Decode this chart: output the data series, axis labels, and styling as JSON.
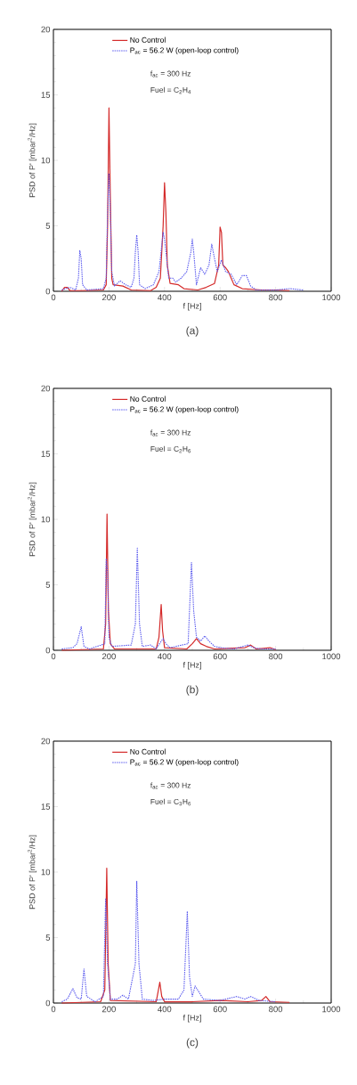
{
  "chart_data": [
    {
      "type": "line",
      "xlabel": "f [Hz]",
      "ylabel": "PSD of P' [mbar$^{2}$/Hz]",
      "xlim": [
        0,
        1000
      ],
      "ylim": [
        0,
        20
      ],
      "xticks": [
        0,
        200,
        400,
        600,
        800,
        1000
      ],
      "yticks": [
        0,
        5,
        10,
        15,
        20
      ],
      "legend": "top left",
      "annotations": [
        "f$_{ac}$ = 300 Hz",
        "Fuel = C$_{2}$H$_{4}$",
        "(a)"
      ],
      "series": [
        {
          "name": "No Control",
          "color": "#d42a2a",
          "line_style": "solid",
          "x": [
            30,
            40,
            50,
            60,
            100,
            180,
            190,
            195,
            200,
            205,
            210,
            215,
            250,
            280,
            350,
            370,
            385,
            395,
            400,
            405,
            410,
            420,
            450,
            470,
            520,
            550,
            580,
            595,
            600,
            605,
            610,
            620,
            630,
            640,
            650,
            680,
            750,
            800,
            850
          ],
          "values": [
            0,
            0.3,
            0.3,
            0.05,
            0.05,
            0.1,
            0.5,
            5,
            14,
            7,
            1,
            0.5,
            0.4,
            0.1,
            0.05,
            0.3,
            1,
            5,
            8.3,
            6,
            2,
            0.6,
            0.5,
            0.2,
            0.1,
            0.3,
            0.6,
            2,
            4.9,
            4.5,
            2,
            1.8,
            1.5,
            1,
            0.5,
            0.2,
            0.1,
            0.1,
            0.05
          ]
        },
        {
          "name": "P$_{ac}$ = 56.2 W (open-loop control)",
          "color": "#5a5aee",
          "line_style": "dotted",
          "x": [
            30,
            60,
            80,
            90,
            95,
            100,
            105,
            120,
            180,
            190,
            195,
            200,
            205,
            210,
            220,
            240,
            260,
            280,
            290,
            295,
            300,
            305,
            310,
            330,
            360,
            380,
            395,
            400,
            405,
            415,
            430,
            440,
            460,
            480,
            495,
            500,
            505,
            515,
            530,
            545,
            560,
            570,
            580,
            590,
            605,
            620,
            640,
            660,
            680,
            695,
            710,
            730,
            800,
            850,
            900
          ],
          "values": [
            0.1,
            0.3,
            0.1,
            1,
            3.1,
            2.5,
            0.5,
            0.1,
            0.2,
            1,
            6,
            9,
            6,
            1.5,
            0.4,
            0.8,
            0.5,
            0.3,
            1,
            3,
            4.3,
            3,
            0.5,
            0.2,
            0.5,
            1.5,
            4.5,
            4,
            3,
            1,
            1,
            0.7,
            1,
            1.5,
            3,
            4,
            3,
            0.5,
            1.8,
            1.3,
            2,
            3.6,
            2.5,
            1.5,
            2.4,
            1.5,
            1.3,
            0.5,
            1.2,
            1.2,
            0.4,
            0.1,
            0.1,
            0.2,
            0.1
          ]
        }
      ]
    },
    {
      "type": "line",
      "xlabel": "f [Hz]",
      "ylabel": "PSD of P' [mbar$^{2}$/Hz]",
      "xlim": [
        0,
        1000
      ],
      "ylim": [
        0,
        20
      ],
      "xticks": [
        0,
        200,
        400,
        600,
        800,
        1000
      ],
      "yticks": [
        0,
        5,
        10,
        15,
        20
      ],
      "legend": "top left",
      "annotations": [
        "f$_{ac}$ = 300 Hz",
        "Fuel = C$_{2}$H$_{6}$",
        "(b)"
      ],
      "series": [
        {
          "name": "No Control",
          "color": "#d42a2a",
          "line_style": "solid",
          "x": [
            30,
            180,
            188,
            193,
            198,
            205,
            220,
            370,
            380,
            388,
            393,
            400,
            480,
            500,
            515,
            530,
            550,
            580,
            690,
            710,
            730,
            780,
            800
          ],
          "values": [
            0,
            0.1,
            2,
            10.4,
            3,
            0.5,
            0.1,
            0.1,
            1,
            3.5,
            1.5,
            0.2,
            0.1,
            0.5,
            0.9,
            0.5,
            0.3,
            0.1,
            0.2,
            0.4,
            0.1,
            0.2,
            0.05
          ]
        },
        {
          "name": "P$_{ac}$ = 56.2 W (open-loop control)",
          "color": "#5a5aee",
          "line_style": "dotted",
          "x": [
            30,
            70,
            85,
            100,
            110,
            130,
            185,
            190,
            195,
            200,
            210,
            280,
            295,
            302,
            310,
            320,
            350,
            370,
            385,
            395,
            405,
            420,
            485,
            497,
            505,
            515,
            530,
            545,
            560,
            580,
            600,
            650,
            700,
            720,
            750,
            800
          ],
          "values": [
            0.1,
            0.2,
            0.5,
            1.8,
            0.3,
            0.1,
            0.5,
            7,
            6,
            1,
            0.3,
            0.4,
            2,
            7.8,
            2,
            0.3,
            0.4,
            0.1,
            0.6,
            0.9,
            0.5,
            0.2,
            0.5,
            6.7,
            3,
            1,
            0.7,
            1.1,
            0.7,
            0.3,
            0.2,
            0.1,
            0.4,
            0.2,
            0.1,
            0.1
          ]
        }
      ]
    },
    {
      "type": "line",
      "xlabel": "f [Hz]",
      "ylabel": "PSD of P' [mbar$^{2}$/Hz]",
      "xlim": [
        0,
        1000
      ],
      "ylim": [
        0,
        20
      ],
      "xticks": [
        0,
        200,
        400,
        600,
        800,
        1000
      ],
      "yticks": [
        0,
        5,
        10,
        15,
        20
      ],
      "legend": "top left",
      "annotations": [
        "f$_{ac}$ = 300 Hz",
        "Fuel = C$_{3}$H$_{6}$",
        "(c)"
      ],
      "series": [
        {
          "name": "No Control",
          "color": "#d42a2a",
          "line_style": "solid",
          "x": [
            30,
            170,
            185,
            192,
            197,
            205,
            370,
            378,
            383,
            390,
            400,
            500,
            600,
            700,
            750,
            765,
            780,
            850
          ],
          "values": [
            0,
            0.1,
            1,
            10.3,
            3,
            0.2,
            0.1,
            1,
            1.6,
            0.5,
            0.1,
            0.1,
            0.2,
            0.1,
            0.2,
            0.5,
            0.1,
            0.05
          ]
        },
        {
          "name": "P$_{ac}$ = 56.2 W (open-loop control)",
          "color": "#5a5aee",
          "line_style": "dotted",
          "x": [
            30,
            50,
            70,
            85,
            100,
            110,
            120,
            150,
            180,
            188,
            195,
            205,
            230,
            250,
            270,
            295,
            300,
            308,
            320,
            360,
            400,
            450,
            470,
            482,
            490,
            500,
            510,
            525,
            540,
            600,
            660,
            690,
            710,
            740,
            800
          ],
          "values": [
            0.1,
            0.3,
            1.1,
            0.4,
            0.3,
            2.6,
            0.5,
            0.1,
            0.5,
            8,
            3,
            0.3,
            0.3,
            0.6,
            0.3,
            3,
            9.3,
            3,
            0.3,
            0.2,
            0.3,
            0.3,
            1,
            7,
            2,
            0.5,
            1.3,
            0.8,
            0.3,
            0.2,
            0.5,
            0.3,
            0.5,
            0.2,
            0.1
          ]
        }
      ]
    }
  ]
}
